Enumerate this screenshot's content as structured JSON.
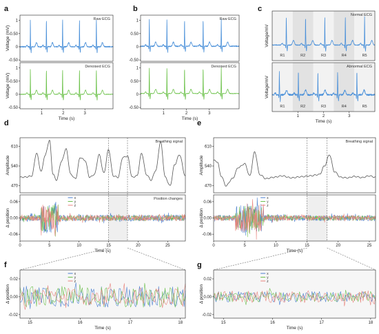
{
  "colors": {
    "ecg_raw": "#4a90d9",
    "ecg_denoised": "#6cc24a",
    "breath": "#555555",
    "x": "#4a7fd0",
    "y": "#6cbf4d",
    "z": "#e8837c",
    "band_light": "#f2f2f2",
    "band_dark": "#e2e2e2",
    "window": "#efefef",
    "axis": "#222222"
  },
  "panel_labels": {
    "a": "a",
    "b": "b",
    "c": "c",
    "d": "d",
    "e": "e",
    "f": "f",
    "g": "g"
  },
  "chart_data": [
    {
      "id": "a_top",
      "type": "line",
      "panel": "a",
      "title": "Raw ECG",
      "ylabel": "Voltage (mV)",
      "xlabel": "",
      "xlim": [
        0,
        4.3
      ],
      "ylim": [
        -0.55,
        1.2
      ],
      "xticks": [],
      "yticks": [
        -0.5,
        0,
        0.5,
        1
      ],
      "series": [
        {
          "color": "ecg_raw",
          "beats": [
            0.48,
            1.22,
            1.97,
            2.75,
            3.53
          ],
          "r_peak": 1.05,
          "baseline": 0.0,
          "noise": 0.02
        }
      ]
    },
    {
      "id": "a_bottom",
      "type": "line",
      "panel": "a",
      "title": "Denoised ECG",
      "ylabel": "Voltage (mV)",
      "xlabel": "Time (s)",
      "xlim": [
        0,
        4.3
      ],
      "ylim": [
        -0.55,
        1.2
      ],
      "xticks": [
        1,
        2,
        3
      ],
      "yticks": [
        -0.5,
        0,
        0.5,
        1
      ],
      "series": [
        {
          "color": "ecg_denoised",
          "beats": [
            0.48,
            1.22,
            1.97,
            2.75,
            3.53
          ],
          "r_peak": 0.95,
          "baseline": 0.0,
          "noise": 0.01
        }
      ]
    },
    {
      "id": "b_top",
      "type": "line",
      "panel": "b",
      "title": "Raw ECG",
      "ylabel": "",
      "xlabel": "",
      "xlim": [
        0,
        4.3
      ],
      "ylim": [
        -0.55,
        1.2
      ],
      "xticks": [],
      "yticks": [
        -0.5,
        0,
        0.5,
        1
      ],
      "series": [
        {
          "color": "ecg_raw",
          "beats": [
            0.38,
            1.15,
            1.92,
            2.73,
            3.52
          ],
          "r_peak": 1.02,
          "baseline": 0.02,
          "noise": 0.02
        }
      ]
    },
    {
      "id": "b_bottom",
      "type": "line",
      "panel": "b",
      "title": "Denoised ECG",
      "ylabel": "",
      "xlabel": "Time (s)",
      "xlim": [
        0,
        4.3
      ],
      "ylim": [
        -0.55,
        1.2
      ],
      "xticks": [
        1,
        2,
        3
      ],
      "yticks": [
        -0.5,
        0,
        0.5,
        1
      ],
      "series": [
        {
          "color": "ecg_denoised",
          "beats": [
            0.38,
            1.15,
            1.92,
            2.73,
            3.52
          ],
          "r_peak": 0.98,
          "baseline": 0.03,
          "noise": 0.01
        }
      ]
    },
    {
      "id": "c_top",
      "type": "line",
      "panel": "c",
      "title": "Normal ECG",
      "ylabel": "Voltage/mV",
      "xlabel": "",
      "xlim": [
        0,
        4.0
      ],
      "ylim": [
        -0.55,
        1.2
      ],
      "xticks": [],
      "yticks": [],
      "segments": [
        "R1",
        "R2",
        "R3",
        "R4",
        "R5"
      ],
      "segment_bounds": [
        0,
        0.8,
        1.6,
        2.4,
        3.2,
        4.0
      ],
      "series": [
        {
          "color": "ecg_raw",
          "beats": [
            0.55,
            1.3,
            2.05,
            2.85,
            3.6
          ],
          "r_peak": 1.0,
          "baseline": 0.0,
          "noise": 0.015
        }
      ]
    },
    {
      "id": "c_bottom",
      "type": "line",
      "panel": "c",
      "title": "Abnormal ECG",
      "ylabel": "Voltage/mV",
      "xlabel": "Time (s)",
      "xlim": [
        0,
        4.0
      ],
      "ylim": [
        -0.55,
        1.2
      ],
      "xticks": [
        1,
        2,
        3
      ],
      "yticks": [],
      "segments": [
        "R1",
        "R2",
        "R3",
        "R4",
        "R5"
      ],
      "segment_bounds": [
        0,
        0.8,
        1.6,
        2.4,
        3.2,
        4.0
      ],
      "series": [
        {
          "color": "ecg_raw",
          "beats": [
            0.28,
            1.02,
            1.78,
            2.55,
            3.3
          ],
          "r_peak": 0.85,
          "baseline": 0.05,
          "noise": 0.03
        }
      ]
    },
    {
      "id": "d_breath",
      "type": "line",
      "panel": "d",
      "title": "Breathing signal",
      "ylabel": "Amplitude",
      "xlabel": "",
      "xlim": [
        0,
        28
      ],
      "ylim": [
        445,
        640
      ],
      "xticks": [],
      "yticks": [
        470,
        540,
        610
      ],
      "series": [
        {
          "color": "breath",
          "x": [
            0,
            1,
            2,
            2.8,
            3.6,
            4.2,
            5.0,
            5.6,
            6.2,
            7.0,
            7.8,
            8.6,
            9.4,
            10.2,
            11.0,
            11.8,
            12.6,
            13.4,
            14.2,
            15.0,
            15.8,
            16.6,
            17.4,
            18.2,
            19.0,
            19.8,
            20.6,
            21.4,
            22.2,
            23.0,
            23.8,
            24.6,
            25.4,
            26.2,
            27.0,
            28.0
          ],
          "y": [
            500,
            501,
            505,
            585,
            520,
            575,
            630,
            510,
            490,
            555,
            600,
            510,
            495,
            570,
            560,
            500,
            510,
            580,
            515,
            598,
            505,
            500,
            570,
            575,
            500,
            505,
            585,
            510,
            490,
            525,
            625,
            500,
            470,
            545,
            580,
            505
          ]
        }
      ]
    },
    {
      "id": "d_pos",
      "type": "line",
      "panel": "d",
      "title": "Position changes",
      "ylabel": "Δ position",
      "xlabel": "Time (s)",
      "xlim": [
        0,
        28
      ],
      "ylim": [
        -0.085,
        0.085
      ],
      "xticks": [
        0,
        5,
        10,
        15,
        20,
        25
      ],
      "yticks": [
        -0.06,
        0.0,
        0.06
      ],
      "highlight": [
        15,
        18.2
      ],
      "series": [
        {
          "name": "x",
          "color": "x",
          "seed": 3,
          "base": 0.012,
          "burst": [
            3.5,
            6.5,
            0.06
          ]
        },
        {
          "name": "y",
          "color": "y",
          "seed": 7,
          "base": 0.01,
          "burst": [
            3.5,
            6.5,
            0.05
          ]
        },
        {
          "name": "z",
          "color": "z",
          "seed": 11,
          "base": 0.011,
          "burst": [
            3.5,
            6.5,
            0.05
          ]
        }
      ]
    },
    {
      "id": "e_breath",
      "type": "line",
      "panel": "e",
      "title": "Breathing signal",
      "ylabel": "Amplitude",
      "xlabel": "",
      "xlim": [
        0,
        26
      ],
      "ylim": [
        445,
        640
      ],
      "xticks": [],
      "yticks": [
        470,
        540,
        610
      ],
      "series": [
        {
          "color": "breath",
          "x": [
            0,
            0.6,
            1.2,
            2.0,
            3.0,
            4.0,
            5.0,
            5.8,
            6.6,
            7.4,
            8.4,
            9.6,
            11,
            12.5,
            14,
            15.5,
            17,
            17.8,
            18.6,
            19.4,
            20.4,
            21.5,
            22.6,
            23.8,
            25,
            26
          ],
          "y": [
            560,
            555,
            505,
            470,
            495,
            535,
            548,
            505,
            590,
            510,
            495,
            500,
            505,
            498,
            502,
            505,
            510,
            540,
            580,
            520,
            500,
            498,
            503,
            499,
            505,
            500
          ]
        }
      ]
    },
    {
      "id": "e_pos",
      "type": "line",
      "panel": "e",
      "title": "",
      "ylabel": "Δ position",
      "xlabel": "Time (s)",
      "xlim": [
        0,
        26
      ],
      "ylim": [
        -0.085,
        0.085
      ],
      "xticks": [
        0,
        5,
        10,
        15,
        20,
        25
      ],
      "yticks": [
        -0.06,
        0.0,
        0.06
      ],
      "highlight": [
        15,
        18.2
      ],
      "series": [
        {
          "name": "x",
          "color": "x",
          "seed": 5,
          "base": 0.011,
          "burst": [
            3.5,
            8.0,
            0.055
          ]
        },
        {
          "name": "y",
          "color": "y",
          "seed": 9,
          "base": 0.009,
          "burst": [
            3.5,
            8.0,
            0.045
          ]
        },
        {
          "name": "z",
          "color": "z",
          "seed": 13,
          "base": 0.01,
          "burst": [
            3.5,
            8.0,
            0.05
          ]
        }
      ]
    },
    {
      "id": "f_zoom",
      "type": "line",
      "panel": "f",
      "title": "",
      "ylabel": "Δ position",
      "xlabel": "Time (s)",
      "xlim": [
        14.8,
        18.1
      ],
      "ylim": [
        -0.024,
        0.03
      ],
      "xticks": [
        15,
        16,
        17,
        18
      ],
      "yticks": [
        -0.02,
        0.0,
        0.02
      ],
      "series": [
        {
          "name": "x",
          "color": "x",
          "seed": 21,
          "base": 0.012
        },
        {
          "name": "y",
          "color": "y",
          "seed": 23,
          "base": 0.012
        },
        {
          "name": "z",
          "color": "z",
          "seed": 27,
          "base": 0.01
        }
      ]
    },
    {
      "id": "g_zoom",
      "type": "line",
      "panel": "g",
      "title": "",
      "ylabel": "Δ position",
      "xlabel": "Time (s)",
      "xlim": [
        14.8,
        18.1
      ],
      "ylim": [
        -0.024,
        0.03
      ],
      "xticks": [
        15,
        16,
        17,
        18
      ],
      "yticks": [
        -0.02,
        0.0,
        0.02
      ],
      "series": [
        {
          "name": "x",
          "color": "x",
          "seed": 31,
          "base": 0.006
        },
        {
          "name": "y",
          "color": "y",
          "seed": 33,
          "base": 0.006
        },
        {
          "name": "z",
          "color": "z",
          "seed": 37,
          "base": 0.007
        }
      ]
    }
  ]
}
